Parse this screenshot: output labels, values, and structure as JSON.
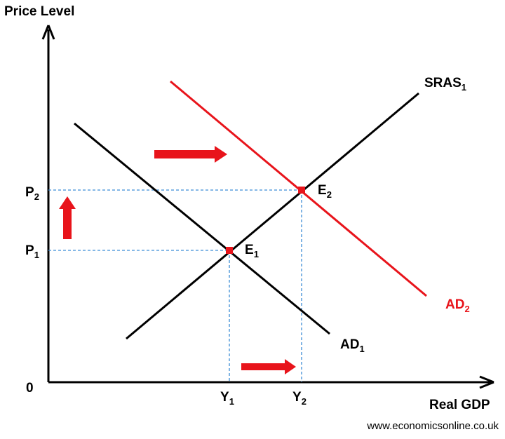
{
  "axes": {
    "y_title": "Price Level",
    "x_title": "Real GDP",
    "origin": "0"
  },
  "curves": {
    "sras": {
      "label": "SRAS",
      "sub": "1",
      "color": "#000000"
    },
    "ad1": {
      "label": "AD",
      "sub": "1",
      "color": "#000000"
    },
    "ad2": {
      "label": "AD",
      "sub": "2",
      "color": "#e8141b"
    }
  },
  "equilibria": {
    "e1": {
      "label": "E",
      "sub": "1"
    },
    "e2": {
      "label": "E",
      "sub": "2"
    }
  },
  "ticks": {
    "p1": {
      "label": "P",
      "sub": "1"
    },
    "p2": {
      "label": "P",
      "sub": "2"
    },
    "y1": {
      "label": "Y",
      "sub": "1"
    },
    "y2": {
      "label": "Y",
      "sub": "2"
    }
  },
  "colors": {
    "arrow": "#e8141b",
    "guide": "#3c8dd6",
    "point": "#e8141b"
  },
  "credit": "www.economicsonline.co.uk"
}
